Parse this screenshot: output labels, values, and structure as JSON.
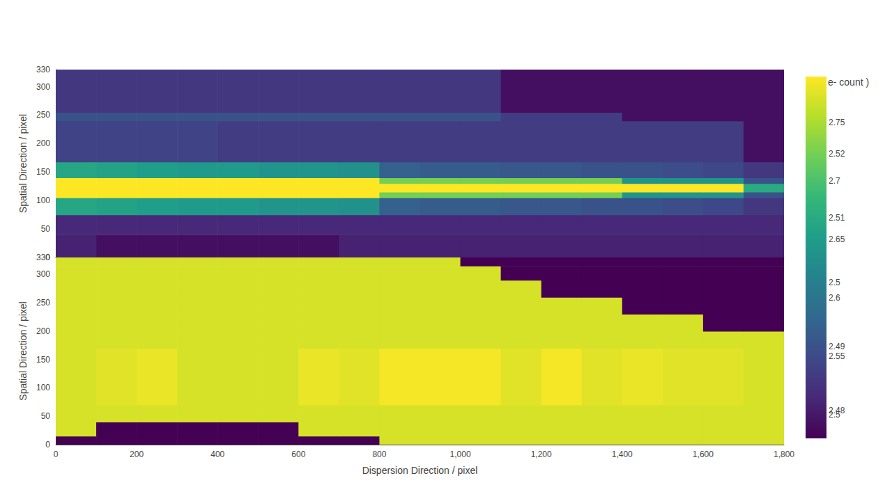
{
  "chart_data": {
    "type": "heatmap",
    "grid": false,
    "xlim": [
      0,
      1800
    ],
    "xticks": [
      0,
      200,
      400,
      600,
      800,
      1000,
      1200,
      1400,
      1600
    ],
    "x_edges": [
      0,
      100,
      200,
      300,
      400,
      500,
      600,
      700,
      800,
      900,
      1000,
      1100,
      1200,
      1300,
      1400,
      1500,
      1600,
      1700,
      1800
    ],
    "colorbar_title": "e- count )",
    "panels": [
      {
        "ylabel": "Spatial Direction / pixel",
        "tick_labels": "y",
        "ylim": [
          0,
          330
        ],
        "yticks": [
          0,
          50,
          100,
          150,
          200,
          250,
          300
        ],
        "clim": [
          2.4757,
          2.532
        ],
        "cticks": [
          2.48,
          2.49,
          2.5,
          2.51,
          2.52
        ],
        "y_edges": [
          0,
          40,
          75,
          105,
          115,
          130,
          140,
          168,
          240,
          255,
          330
        ],
        "z": [
          [
            2.481,
            2.478,
            2.478,
            2.478,
            2.478,
            2.478,
            2.478,
            2.481,
            2.481,
            2.481,
            2.481,
            2.481,
            2.481,
            2.481,
            2.481,
            2.481,
            2.481,
            2.481
          ],
          [
            2.482,
            2.482,
            2.482,
            2.482,
            2.482,
            2.482,
            2.482,
            2.482,
            2.482,
            2.482,
            2.482,
            2.482,
            2.482,
            2.482,
            2.482,
            2.482,
            2.482,
            2.482
          ],
          [
            2.509,
            2.508,
            2.507,
            2.506,
            2.506,
            2.505,
            2.505,
            2.504,
            2.493,
            2.492,
            2.492,
            2.491,
            2.491,
            2.49,
            2.49,
            2.489,
            2.488,
            2.485
          ],
          [
            2.533,
            2.533,
            2.533,
            2.533,
            2.533,
            2.533,
            2.533,
            2.533,
            2.52,
            2.52,
            2.52,
            2.52,
            2.52,
            2.52,
            2.505,
            2.505,
            2.505,
            2.49
          ],
          [
            2.535,
            2.535,
            2.535,
            2.535,
            2.535,
            2.535,
            2.535,
            2.535,
            2.535,
            2.535,
            2.535,
            2.535,
            2.535,
            2.535,
            2.535,
            2.535,
            2.535,
            2.51
          ],
          [
            2.533,
            2.533,
            2.533,
            2.533,
            2.533,
            2.533,
            2.533,
            2.533,
            2.52,
            2.52,
            2.52,
            2.52,
            2.52,
            2.52,
            2.505,
            2.505,
            2.505,
            2.49
          ],
          [
            2.509,
            2.508,
            2.507,
            2.506,
            2.506,
            2.505,
            2.505,
            2.504,
            2.493,
            2.492,
            2.492,
            2.491,
            2.491,
            2.49,
            2.49,
            2.489,
            2.488,
            2.485
          ],
          [
            2.487,
            2.487,
            2.487,
            2.487,
            2.486,
            2.486,
            2.486,
            2.486,
            2.486,
            2.486,
            2.486,
            2.486,
            2.486,
            2.486,
            2.486,
            2.486,
            2.486,
            2.478
          ],
          [
            2.49,
            2.49,
            2.49,
            2.49,
            2.49,
            2.49,
            2.49,
            2.49,
            2.49,
            2.49,
            2.49,
            2.486,
            2.486,
            2.486,
            2.478,
            2.478,
            2.478,
            2.478
          ],
          [
            2.485,
            2.485,
            2.485,
            2.485,
            2.485,
            2.485,
            2.485,
            2.485,
            2.485,
            2.485,
            2.485,
            2.478,
            2.478,
            2.478,
            2.478,
            2.478,
            2.478,
            2.478
          ]
        ]
      },
      {
        "xlabel": "Dispersion Direction / pixel",
        "ylabel": "Spatial Direction / pixel",
        "ylim": [
          0,
          330
        ],
        "yticks": [
          0,
          50,
          100,
          150,
          200,
          250,
          300
        ],
        "clim": [
          2.48,
          2.789
        ],
        "cticks": [
          2.5,
          2.55,
          2.6,
          2.65,
          2.7,
          2.75
        ],
        "y_edges": [
          0,
          15,
          40,
          70,
          170,
          200,
          230,
          260,
          290,
          315,
          330
        ],
        "z": [
          [
            2.48,
            2.48,
            2.48,
            2.48,
            2.48,
            2.48,
            2.48,
            2.48,
            2.77,
            2.77,
            2.77,
            2.77,
            2.77,
            2.77,
            2.77,
            2.77,
            2.77,
            2.77
          ],
          [
            2.77,
            2.48,
            2.48,
            2.48,
            2.48,
            2.48,
            2.77,
            2.77,
            2.77,
            2.77,
            2.77,
            2.77,
            2.77,
            2.77,
            2.77,
            2.77,
            2.77,
            2.77
          ],
          [
            2.77,
            2.77,
            2.77,
            2.77,
            2.77,
            2.77,
            2.77,
            2.77,
            2.77,
            2.77,
            2.77,
            2.77,
            2.77,
            2.77,
            2.77,
            2.77,
            2.77,
            2.77
          ],
          [
            2.77,
            2.775,
            2.78,
            2.77,
            2.77,
            2.77,
            2.78,
            2.775,
            2.785,
            2.785,
            2.785,
            2.775,
            2.785,
            2.775,
            2.78,
            2.775,
            2.775,
            2.77
          ],
          [
            2.77,
            2.77,
            2.77,
            2.77,
            2.77,
            2.77,
            2.77,
            2.77,
            2.77,
            2.77,
            2.77,
            2.77,
            2.77,
            2.77,
            2.77,
            2.77,
            2.77,
            2.77
          ],
          [
            2.77,
            2.77,
            2.77,
            2.77,
            2.77,
            2.77,
            2.77,
            2.77,
            2.77,
            2.77,
            2.77,
            2.77,
            2.77,
            2.77,
            2.77,
            2.77,
            2.48,
            2.48
          ],
          [
            2.77,
            2.77,
            2.77,
            2.77,
            2.77,
            2.77,
            2.77,
            2.77,
            2.77,
            2.77,
            2.77,
            2.77,
            2.77,
            2.77,
            2.48,
            2.48,
            2.48,
            2.48
          ],
          [
            2.77,
            2.77,
            2.77,
            2.77,
            2.77,
            2.77,
            2.77,
            2.77,
            2.77,
            2.77,
            2.77,
            2.77,
            2.48,
            2.48,
            2.48,
            2.48,
            2.48,
            2.48
          ],
          [
            2.77,
            2.77,
            2.77,
            2.77,
            2.77,
            2.77,
            2.77,
            2.77,
            2.77,
            2.77,
            2.77,
            2.48,
            2.48,
            2.48,
            2.48,
            2.48,
            2.48,
            2.48
          ],
          [
            2.77,
            2.77,
            2.77,
            2.77,
            2.77,
            2.77,
            2.77,
            2.77,
            2.77,
            2.77,
            2.48,
            2.48,
            2.48,
            2.48,
            2.48,
            2.48,
            2.48,
            2.48
          ]
        ]
      }
    ]
  }
}
